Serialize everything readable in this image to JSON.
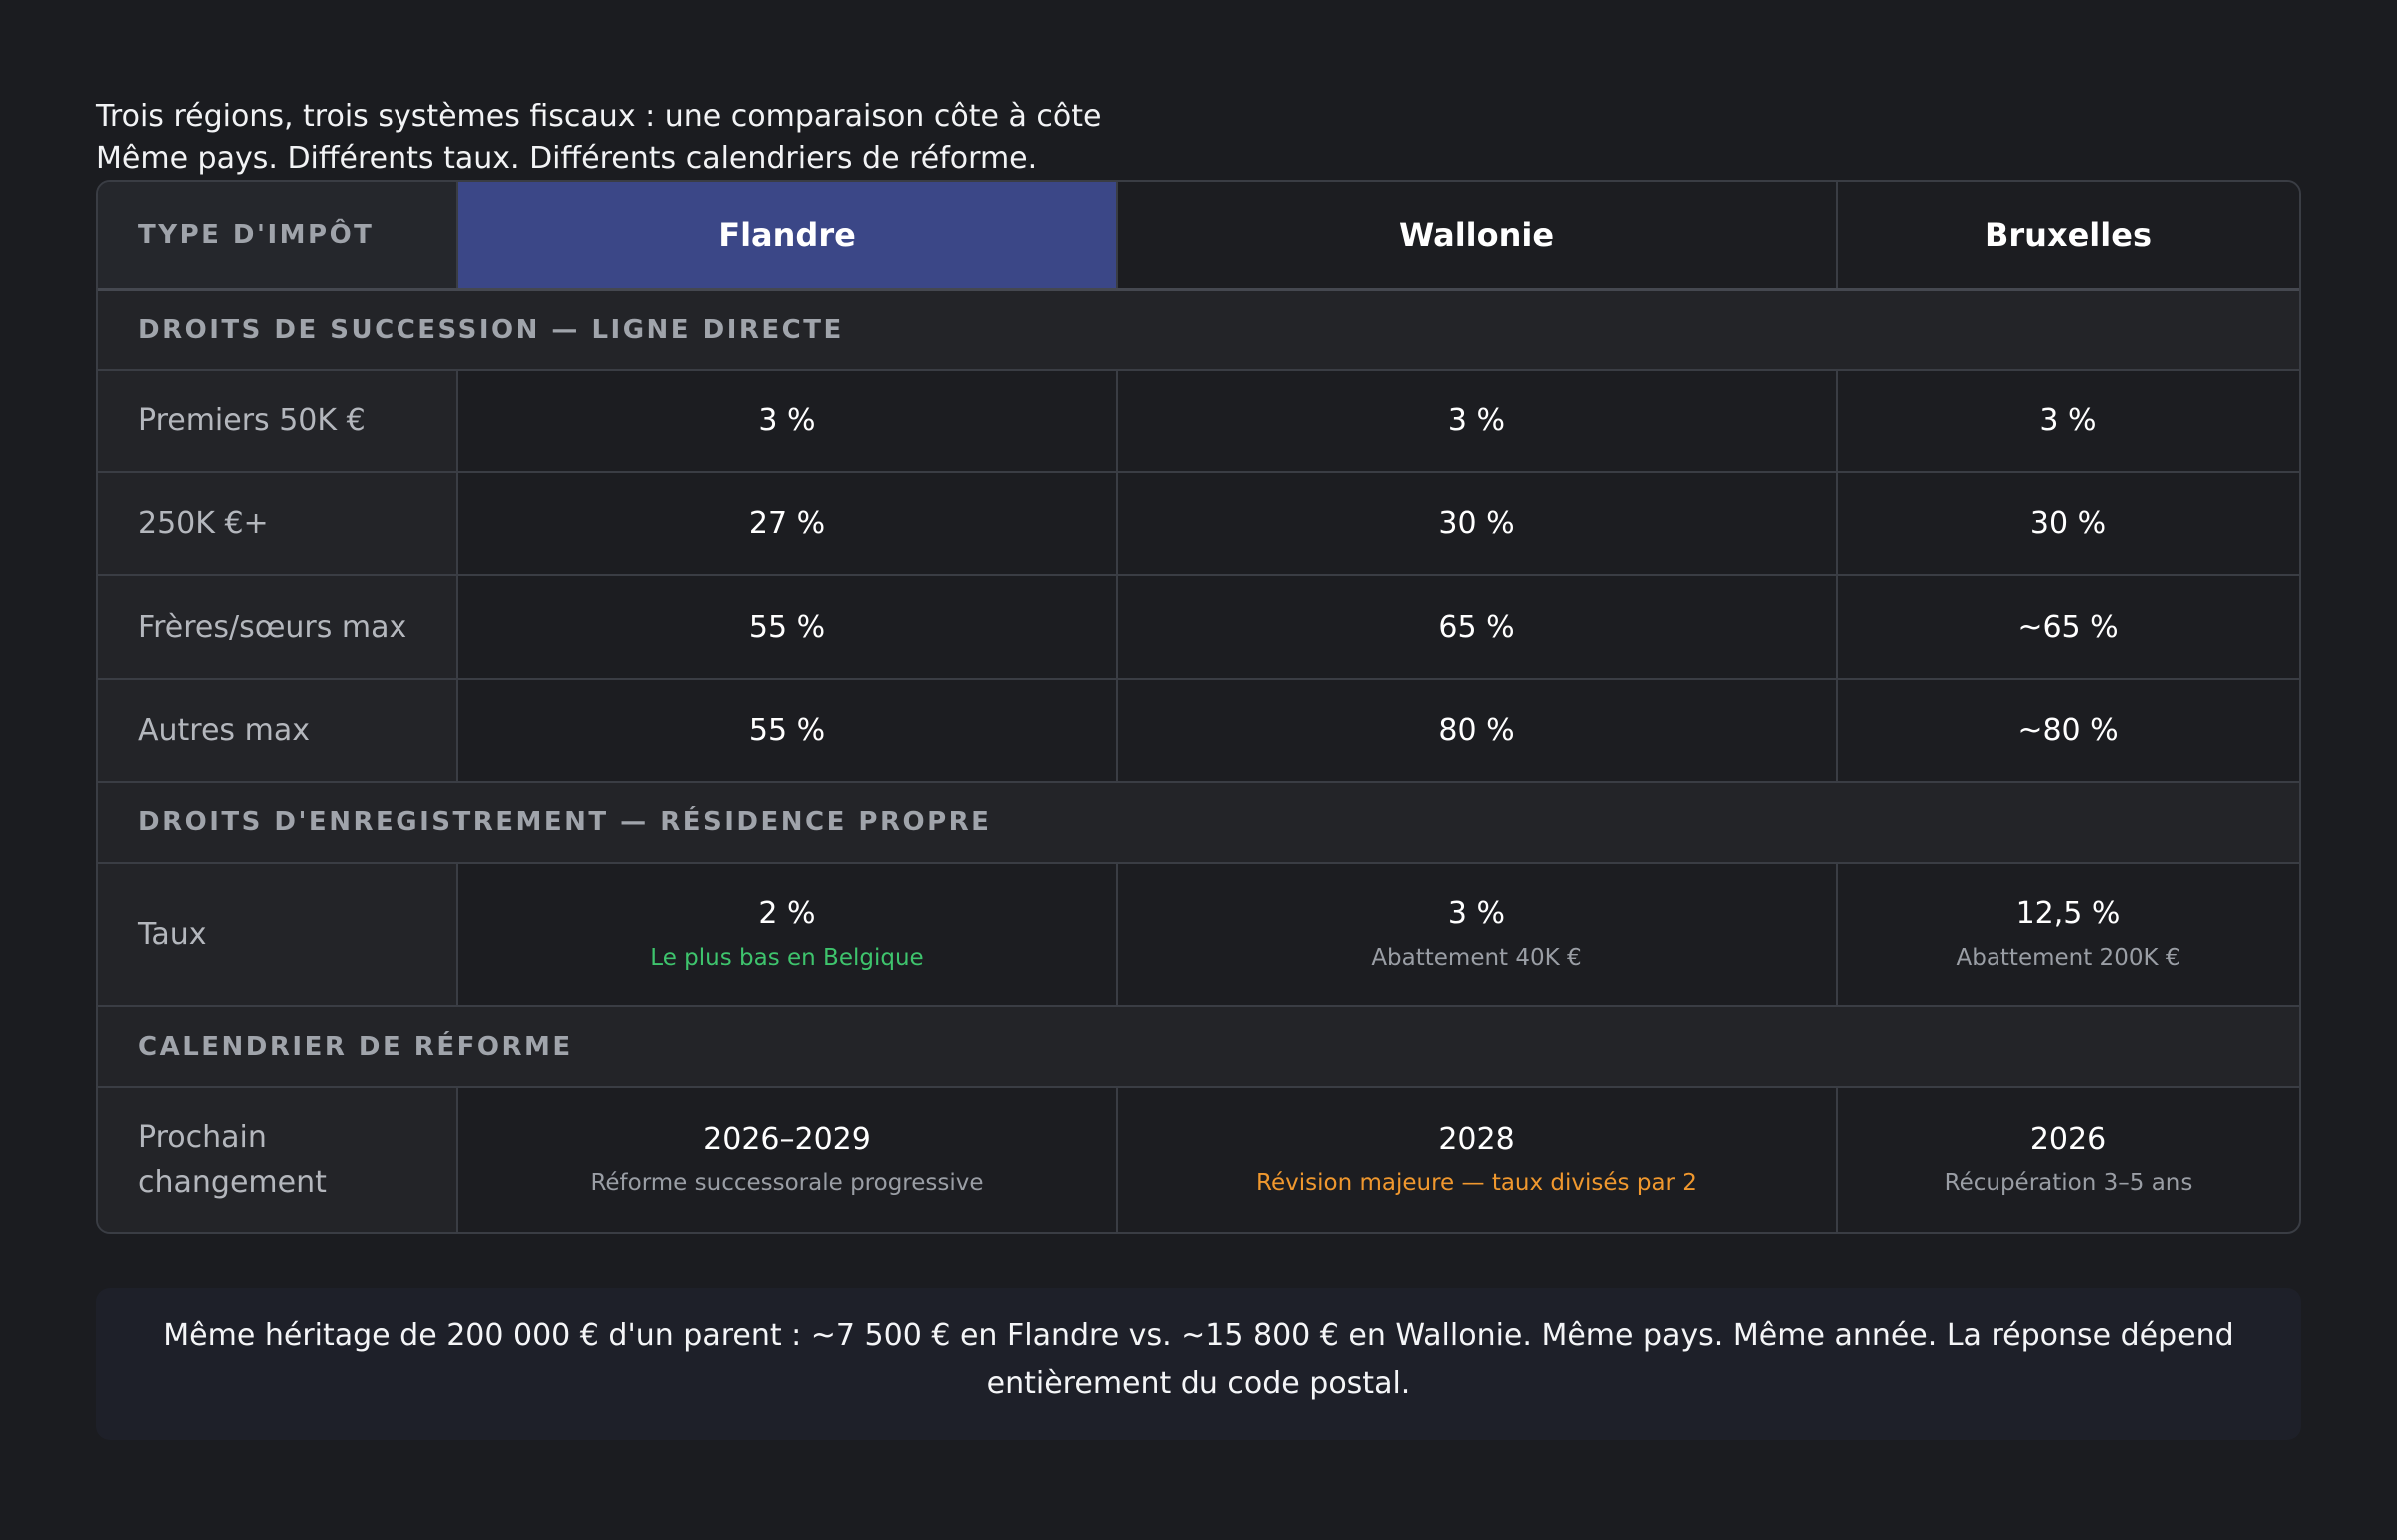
{
  "heading": {
    "line1": "Trois régions, trois systèmes fiscaux : une comparaison côte à côte",
    "line2": "Même pays. Différents taux. Différents calendriers de réforme."
  },
  "table": {
    "header": {
      "type_label": "TYPE D'IMPÔT",
      "regions": [
        "Flandre",
        "Wallonie",
        "Bruxelles"
      ],
      "highlighted_region": "Flandre",
      "highlight_color": "#3b4787"
    },
    "sections": [
      {
        "title": "DROITS DE SUCCESSION — LIGNE DIRECTE",
        "rows": [
          {
            "label": "Premiers 50K €",
            "values": [
              "3 %",
              "3 %",
              "3 %"
            ]
          },
          {
            "label": "250K €+",
            "values": [
              "27 %",
              "30 %",
              "30 %"
            ]
          },
          {
            "label": "Frères/sœurs max",
            "values": [
              "55 %",
              "65 %",
              "~65 %"
            ]
          },
          {
            "label": "Autres max",
            "values": [
              "55 %",
              "80 %",
              "~80 %"
            ]
          }
        ]
      },
      {
        "title": "DROITS D'ENREGISTREMENT — RÉSIDENCE PROPRE",
        "rows": [
          {
            "label": "Taux",
            "values": [
              "2 %",
              "3 %",
              "12,5 %"
            ],
            "notes": [
              "Le plus bas en Belgique",
              "Abattement 40K €",
              "Abattement 200K €"
            ]
          }
        ]
      },
      {
        "title": "CALENDRIER DE RÉFORME",
        "rows": [
          {
            "label_line1": "Prochain",
            "label_line2": "changement",
            "values": [
              "2026–2029",
              "2028",
              "2026"
            ],
            "notes": [
              "Réforme successorale progressive",
              "Révision majeure — taux divisés par 2",
              "Récupération 3–5 ans"
            ]
          }
        ]
      }
    ],
    "colors": {
      "note_green": "#3ec46d",
      "note_orange": "#f0982e",
      "note_gray": "#9a9ea5"
    }
  },
  "footer": {
    "text": "Même héritage de 200 000 € d'un parent : ~7 500 € en Flandre vs. ~15 800 € en Wallonie. Même pays. Même année. La réponse dépend entièrement du code postal."
  }
}
